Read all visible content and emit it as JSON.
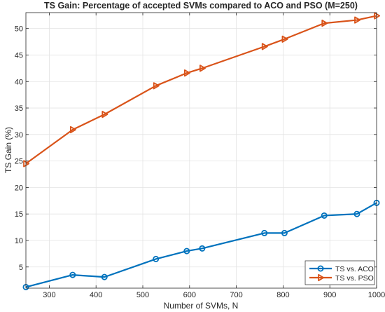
{
  "chart_data": {
    "type": "line",
    "title": "TS Gain: Percentage of accepted SVMs compared to ACO and PSO (M=250)",
    "xlabel": "Number of SVMs, N",
    "ylabel": "TS Gain (%)",
    "xlim": [
      250,
      1000
    ],
    "ylim": [
      1,
      53
    ],
    "xticks": [
      300,
      400,
      500,
      600,
      700,
      800,
      900,
      1000
    ],
    "yticks": [
      5,
      10,
      15,
      20,
      25,
      30,
      35,
      40,
      45,
      50
    ],
    "grid": true,
    "legend_position": "bottom-right",
    "series": [
      {
        "name": "TS vs. ACO",
        "color": "#0072BD",
        "marker": "circle",
        "x": [
          250,
          350,
          418,
          528,
          594,
          627,
          760,
          803,
          888,
          958,
          1000
        ],
        "y": [
          1.2,
          3.5,
          3.1,
          6.5,
          8.0,
          8.5,
          11.4,
          11.4,
          14.7,
          15.0,
          17.1
        ]
      },
      {
        "name": "TS vs. PSO",
        "color": "#D95319",
        "marker": "triangle-right",
        "x": [
          250,
          350,
          418,
          528,
          594,
          627,
          760,
          803,
          888,
          958,
          1000
        ],
        "y": [
          24.5,
          30.9,
          33.8,
          39.2,
          41.6,
          42.5,
          46.6,
          48.0,
          51.0,
          51.6,
          52.4
        ]
      }
    ]
  }
}
